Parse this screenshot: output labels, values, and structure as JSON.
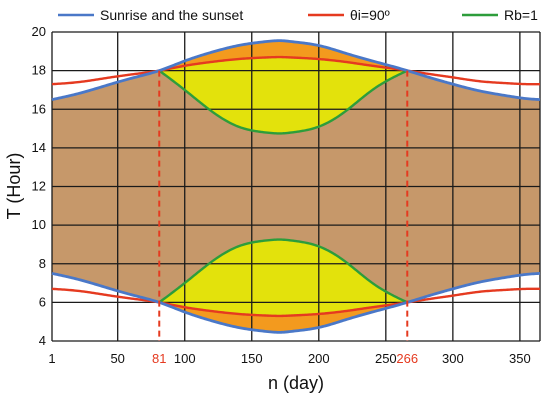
{
  "chart_data": {
    "type": "area",
    "xlabel": "n (day)",
    "ylabel": "T (Hour)",
    "xlim": [
      1,
      365
    ],
    "ylim": [
      4,
      20
    ],
    "x_ticks": [
      "1",
      "50",
      "100",
      "150",
      "200",
      "250",
      "300",
      "350"
    ],
    "y_ticks": [
      "4",
      "6",
      "8",
      "10",
      "12",
      "14",
      "16",
      "18",
      "20"
    ],
    "special_x": [
      {
        "label": "81",
        "value": 81
      },
      {
        "label": "266",
        "value": 266
      }
    ],
    "grid": true,
    "legend_position": "top",
    "legend": [
      {
        "label": "Sunrise and the sunset",
        "color": "#4a78c8"
      },
      {
        "label": "θi=90º",
        "color": "#e53a20"
      },
      {
        "label": "Rb=1",
        "color": "#2d9d3b"
      }
    ],
    "series": [
      {
        "name": "Sunrise and the sunset",
        "color": "#4a78c8",
        "x": [
          1,
          20,
          40,
          60,
          81,
          100,
          120,
          140,
          160,
          172,
          180,
          200,
          220,
          240,
          266,
          280,
          300,
          320,
          340,
          355,
          365
        ],
        "sunset": [
          16.5,
          16.8,
          17.2,
          17.6,
          18.0,
          18.5,
          18.95,
          19.3,
          19.5,
          19.55,
          19.5,
          19.3,
          18.9,
          18.5,
          18.0,
          17.7,
          17.3,
          16.95,
          16.7,
          16.55,
          16.5
        ],
        "sunrise": [
          7.5,
          7.2,
          6.8,
          6.4,
          6.0,
          5.5,
          5.05,
          4.7,
          4.5,
          4.45,
          4.5,
          4.7,
          5.1,
          5.5,
          6.0,
          6.3,
          6.7,
          7.05,
          7.3,
          7.45,
          7.5
        ]
      },
      {
        "name": "θi=90º",
        "color": "#e53a20",
        "x": [
          1,
          20,
          40,
          60,
          81,
          100,
          120,
          140,
          160,
          172,
          180,
          200,
          220,
          240,
          266,
          280,
          300,
          320,
          340,
          355,
          365
        ],
        "upper": [
          17.3,
          17.4,
          17.6,
          17.8,
          18.0,
          18.25,
          18.45,
          18.6,
          18.68,
          18.7,
          18.68,
          18.6,
          18.45,
          18.25,
          18.0,
          17.85,
          17.65,
          17.45,
          17.35,
          17.3,
          17.3
        ],
        "lower": [
          6.7,
          6.6,
          6.4,
          6.2,
          6.0,
          5.75,
          5.55,
          5.4,
          5.32,
          5.3,
          5.32,
          5.4,
          5.55,
          5.75,
          6.0,
          6.15,
          6.35,
          6.55,
          6.65,
          6.7,
          6.7
        ]
      },
      {
        "name": "Rb=1",
        "color": "#2d9d3b",
        "x": [
          81,
          100,
          120,
          140,
          160,
          172,
          180,
          200,
          220,
          240,
          266
        ],
        "upper": [
          18.0,
          17.0,
          15.9,
          15.1,
          14.8,
          14.75,
          14.8,
          15.1,
          15.9,
          17.0,
          18.0
        ],
        "lower": [
          6.0,
          7.0,
          8.1,
          8.9,
          9.2,
          9.25,
          9.2,
          8.9,
          8.1,
          7.0,
          6.0
        ]
      }
    ]
  }
}
